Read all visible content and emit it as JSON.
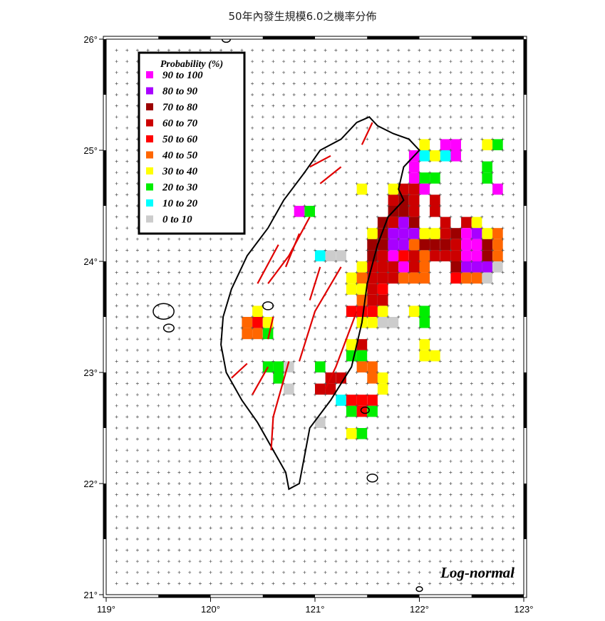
{
  "title": "50年內發生規模6.0之機率分佈",
  "model_label": "Log-normal",
  "axes": {
    "lon_ticks": [
      "119°",
      "120°",
      "121°",
      "122°",
      "123°"
    ],
    "lat_ticks": [
      "21°",
      "22°",
      "23°",
      "24°",
      "25°",
      "26°"
    ],
    "lon_range": [
      119,
      123
    ],
    "lat_range": [
      21,
      26
    ]
  },
  "legend": {
    "title": "Probability (%)",
    "items": [
      {
        "label": "90 to 100",
        "color": "#ff00ff"
      },
      {
        "label": "80 to  90",
        "color": "#a800ff"
      },
      {
        "label": "70 to  80",
        "color": "#9c0000"
      },
      {
        "label": "60 to  70",
        "color": "#cc0000"
      },
      {
        "label": "50 to  60",
        "color": "#ff0000"
      },
      {
        "label": "40 to  50",
        "color": "#ff6600"
      },
      {
        "label": "30 to  40",
        "color": "#ffff00"
      },
      {
        "label": "20 to  30",
        "color": "#00ee00"
      },
      {
        "label": "10 to  20",
        "color": "#00ffff"
      },
      {
        "label": "0 to  10",
        "color": "#cccccc"
      }
    ]
  },
  "colors": {
    "coast": "#000000",
    "fault": "#e00000",
    "grid_mark": "#555555"
  },
  "cell_size_deg": 0.1,
  "cells": [
    [
      22.0,
      25.0,
      6
    ],
    [
      22.2,
      25.0,
      0
    ],
    [
      22.3,
      25.0,
      0
    ],
    [
      22.6,
      25.0,
      6
    ],
    [
      22.7,
      25.0,
      7
    ],
    [
      21.9,
      24.9,
      0
    ],
    [
      22.0,
      24.9,
      8
    ],
    [
      22.1,
      24.9,
      6
    ],
    [
      22.2,
      24.9,
      8
    ],
    [
      22.3,
      24.9,
      0
    ],
    [
      21.9,
      24.8,
      0
    ],
    [
      22.6,
      24.8,
      7
    ],
    [
      21.9,
      24.7,
      0
    ],
    [
      22.0,
      24.7,
      7
    ],
    [
      22.1,
      24.7,
      7
    ],
    [
      22.6,
      24.7,
      7
    ],
    [
      21.4,
      24.6,
      6
    ],
    [
      21.7,
      24.6,
      6
    ],
    [
      21.8,
      24.6,
      3
    ],
    [
      21.9,
      24.6,
      3
    ],
    [
      22.0,
      24.6,
      0
    ],
    [
      22.7,
      24.6,
      0
    ],
    [
      21.7,
      24.5,
      3
    ],
    [
      21.8,
      24.5,
      2
    ],
    [
      21.9,
      24.5,
      3
    ],
    [
      22.1,
      24.5,
      3
    ],
    [
      20.8,
      24.4,
      0
    ],
    [
      20.9,
      24.4,
      7
    ],
    [
      21.7,
      24.4,
      2
    ],
    [
      21.8,
      24.4,
      2
    ],
    [
      21.9,
      24.4,
      3
    ],
    [
      22.1,
      24.4,
      3
    ],
    [
      21.6,
      24.3,
      2
    ],
    [
      21.7,
      24.3,
      3
    ],
    [
      21.8,
      24.3,
      1
    ],
    [
      21.9,
      24.3,
      2
    ],
    [
      22.2,
      24.3,
      3
    ],
    [
      22.4,
      24.3,
      3
    ],
    [
      22.5,
      24.3,
      6
    ],
    [
      21.5,
      24.2,
      6
    ],
    [
      21.6,
      24.2,
      2
    ],
    [
      21.7,
      24.2,
      1
    ],
    [
      21.8,
      24.2,
      1
    ],
    [
      21.9,
      24.2,
      1
    ],
    [
      22.0,
      24.2,
      6
    ],
    [
      22.1,
      24.2,
      6
    ],
    [
      22.2,
      24.2,
      3
    ],
    [
      22.3,
      24.2,
      2
    ],
    [
      22.4,
      24.2,
      0
    ],
    [
      22.5,
      24.2,
      1
    ],
    [
      22.6,
      24.2,
      6
    ],
    [
      22.7,
      24.2,
      5
    ],
    [
      21.5,
      24.1,
      2
    ],
    [
      21.6,
      24.1,
      2
    ],
    [
      21.7,
      24.1,
      1
    ],
    [
      21.8,
      24.1,
      1
    ],
    [
      21.9,
      24.1,
      5
    ],
    [
      22.0,
      24.1,
      2
    ],
    [
      22.1,
      24.1,
      2
    ],
    [
      22.2,
      24.1,
      2
    ],
    [
      22.3,
      24.1,
      3
    ],
    [
      22.4,
      24.1,
      0
    ],
    [
      22.5,
      24.1,
      0
    ],
    [
      22.6,
      24.1,
      2
    ],
    [
      22.7,
      24.1,
      5
    ],
    [
      21.0,
      24.0,
      8
    ],
    [
      21.1,
      24.0,
      9
    ],
    [
      21.2,
      24.0,
      9
    ],
    [
      21.5,
      24.0,
      2
    ],
    [
      21.6,
      24.0,
      3
    ],
    [
      21.7,
      24.0,
      0
    ],
    [
      21.8,
      24.0,
      4
    ],
    [
      21.9,
      24.0,
      3
    ],
    [
      22.0,
      24.0,
      5
    ],
    [
      22.1,
      24.0,
      3
    ],
    [
      22.2,
      24.0,
      3
    ],
    [
      22.3,
      24.0,
      3
    ],
    [
      22.4,
      24.0,
      0
    ],
    [
      22.5,
      24.0,
      0
    ],
    [
      22.6,
      24.0,
      2
    ],
    [
      22.7,
      24.0,
      5
    ],
    [
      21.4,
      23.9,
      6
    ],
    [
      21.5,
      23.9,
      3
    ],
    [
      21.6,
      23.9,
      3
    ],
    [
      21.7,
      23.9,
      3
    ],
    [
      21.8,
      23.9,
      0
    ],
    [
      21.9,
      23.9,
      3
    ],
    [
      22.0,
      23.9,
      5
    ],
    [
      22.3,
      23.9,
      2
    ],
    [
      22.4,
      23.9,
      1
    ],
    [
      22.5,
      23.9,
      1
    ],
    [
      22.6,
      23.9,
      1
    ],
    [
      22.7,
      23.9,
      9
    ],
    [
      21.3,
      23.8,
      6
    ],
    [
      21.4,
      23.8,
      5
    ],
    [
      21.5,
      23.8,
      3
    ],
    [
      21.6,
      23.8,
      3
    ],
    [
      21.7,
      23.8,
      3
    ],
    [
      21.8,
      23.8,
      5
    ],
    [
      21.9,
      23.8,
      5
    ],
    [
      22.0,
      23.8,
      5
    ],
    [
      22.3,
      23.8,
      4
    ],
    [
      22.4,
      23.8,
      5
    ],
    [
      22.5,
      23.8,
      5
    ],
    [
      22.6,
      23.8,
      9
    ],
    [
      21.3,
      23.7,
      6
    ],
    [
      21.4,
      23.7,
      6
    ],
    [
      21.5,
      23.7,
      3
    ],
    [
      21.6,
      23.7,
      4
    ],
    [
      21.4,
      23.6,
      5
    ],
    [
      21.5,
      23.6,
      3
    ],
    [
      21.6,
      23.6,
      3
    ],
    [
      20.4,
      23.5,
      6
    ],
    [
      21.3,
      23.5,
      4
    ],
    [
      21.4,
      23.5,
      4
    ],
    [
      21.5,
      23.5,
      4
    ],
    [
      21.6,
      23.5,
      6
    ],
    [
      21.9,
      23.5,
      6
    ],
    [
      22.0,
      23.5,
      7
    ],
    [
      20.3,
      23.4,
      5
    ],
    [
      20.4,
      23.4,
      4
    ],
    [
      20.5,
      23.4,
      6
    ],
    [
      21.4,
      23.4,
      6
    ],
    [
      21.5,
      23.4,
      6
    ],
    [
      21.6,
      23.4,
      9
    ],
    [
      21.7,
      23.4,
      9
    ],
    [
      22.0,
      23.4,
      7
    ],
    [
      20.3,
      23.3,
      5
    ],
    [
      20.4,
      23.3,
      5
    ],
    [
      20.5,
      23.3,
      7
    ],
    [
      21.3,
      23.2,
      6
    ],
    [
      21.4,
      23.2,
      3
    ],
    [
      22.0,
      23.2,
      6
    ],
    [
      21.3,
      23.1,
      7
    ],
    [
      21.4,
      23.1,
      7
    ],
    [
      22.0,
      23.1,
      6
    ],
    [
      22.1,
      23.1,
      6
    ],
    [
      20.5,
      23.0,
      7
    ],
    [
      20.6,
      23.0,
      7
    ],
    [
      20.7,
      23.0,
      9
    ],
    [
      21.0,
      23.0,
      7
    ],
    [
      21.4,
      23.0,
      5
    ],
    [
      21.5,
      23.0,
      5
    ],
    [
      20.6,
      22.9,
      7
    ],
    [
      21.1,
      22.9,
      3
    ],
    [
      21.2,
      22.9,
      3
    ],
    [
      21.5,
      22.9,
      5
    ],
    [
      21.6,
      22.9,
      6
    ],
    [
      20.7,
      22.8,
      9
    ],
    [
      21.0,
      22.8,
      3
    ],
    [
      21.1,
      22.8,
      3
    ],
    [
      21.6,
      22.8,
      6
    ],
    [
      21.2,
      22.7,
      8
    ],
    [
      21.3,
      22.7,
      4
    ],
    [
      21.4,
      22.7,
      4
    ],
    [
      21.5,
      22.7,
      4
    ],
    [
      21.3,
      22.6,
      7
    ],
    [
      21.4,
      22.6,
      4
    ],
    [
      21.5,
      22.6,
      7
    ],
    [
      21.0,
      22.5,
      9
    ],
    [
      21.3,
      22.4,
      6
    ],
    [
      21.4,
      22.4,
      7
    ]
  ],
  "faults": [
    [
      [
        121.55,
        25.25
      ],
      [
        121.45,
        25.05
      ]
    ],
    [
      [
        121.15,
        24.95
      ],
      [
        120.95,
        24.85
      ]
    ],
    [
      [
        121.25,
        24.85
      ],
      [
        121.05,
        24.7
      ]
    ],
    [
      [
        120.95,
        24.4
      ],
      [
        120.75,
        24.05
      ],
      [
        120.55,
        23.8
      ]
    ],
    [
      [
        120.85,
        24.25
      ],
      [
        120.72,
        23.95
      ]
    ],
    [
      [
        120.65,
        24.15
      ],
      [
        120.45,
        23.8
      ]
    ],
    [
      [
        121.05,
        23.95
      ],
      [
        120.95,
        23.65
      ]
    ],
    [
      [
        120.6,
        23.5
      ],
      [
        120.55,
        23.3
      ]
    ],
    [
      [
        121.25,
        23.95
      ],
      [
        121.0,
        23.55
      ],
      [
        120.85,
        23.1
      ]
    ],
    [
      [
        121.4,
        23.55
      ],
      [
        121.2,
        23.05
      ],
      [
        121.1,
        22.85
      ]
    ],
    [
      [
        120.55,
        23.05
      ],
      [
        120.4,
        22.8
      ]
    ],
    [
      [
        120.75,
        23.1
      ],
      [
        120.6,
        22.6
      ],
      [
        120.58,
        22.3
      ]
    ],
    [
      [
        120.35,
        23.08
      ],
      [
        120.2,
        22.95
      ]
    ]
  ]
}
